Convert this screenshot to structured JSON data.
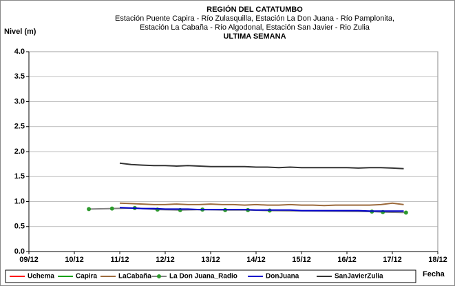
{
  "chart_data": {
    "type": "line",
    "title": "REGIÓN DEL CATATUMBO",
    "subtitle": [
      "Estación Puente Capira - Río Zulasquilla, Estación La Don Juana - Río Pamplonita,",
      "Estación La Cabaña - Río Algodonal, Estación San Javier - Rio Zulia",
      "ULTIMA SEMANA"
    ],
    "y_label": "Nivel (m)",
    "x_label": "Fecha",
    "xlim": [
      9,
      18
    ],
    "xticks": [
      {
        "value": 9,
        "label": "09/12"
      },
      {
        "value": 10,
        "label": "10/12"
      },
      {
        "value": 11,
        "label": "11/12"
      },
      {
        "value": 12,
        "label": "12/12"
      },
      {
        "value": 13,
        "label": "13/12"
      },
      {
        "value": 14,
        "label": "14/12"
      },
      {
        "value": 15,
        "label": "15/12"
      },
      {
        "value": 16,
        "label": "16/12"
      },
      {
        "value": 17,
        "label": "17/12"
      },
      {
        "value": 18,
        "label": "18/12"
      }
    ],
    "ylim": [
      0,
      4
    ],
    "yticks": [
      {
        "value": 0,
        "label": "0.0"
      },
      0.5,
      {
        "value": 1,
        "label": "1.0"
      },
      1.5,
      {
        "value": 2,
        "label": "2.0"
      },
      2.5,
      {
        "value": 3,
        "label": "3.0"
      },
      3.5,
      {
        "value": 4,
        "label": "4.0"
      }
    ],
    "grid": true,
    "legend": "bottom",
    "series": [
      {
        "name": "Uchema",
        "color": "#ff0000",
        "x": [],
        "values": []
      },
      {
        "name": "Capira",
        "color": "#00a000",
        "x": [],
        "values": []
      },
      {
        "name": "LaCabaña",
        "color": "#9c6a3c",
        "x": [
          11,
          11.25,
          11.5,
          11.75,
          12,
          12.25,
          12.5,
          12.75,
          13,
          13.25,
          13.5,
          13.75,
          14,
          14.25,
          14.5,
          14.75,
          15,
          15.25,
          15.5,
          15.75,
          16,
          16.25,
          16.5,
          16.75,
          17,
          17.25
        ],
        "values": [
          0.97,
          0.96,
          0.95,
          0.94,
          0.94,
          0.95,
          0.94,
          0.94,
          0.95,
          0.94,
          0.94,
          0.93,
          0.94,
          0.93,
          0.93,
          0.94,
          0.93,
          0.93,
          0.92,
          0.93,
          0.93,
          0.93,
          0.93,
          0.94,
          0.97,
          0.94
        ]
      },
      {
        "name": "La Don Juana_Radio",
        "color": "#808080",
        "marker_color": "#2e9a2e",
        "x": [
          10.32,
          10.83,
          11.33,
          11.83,
          12.33,
          12.82,
          13.32,
          13.82,
          14.3,
          16.55,
          16.79,
          17.3
        ],
        "values": [
          0.85,
          0.86,
          0.87,
          0.84,
          0.83,
          0.84,
          0.83,
          0.83,
          0.82,
          0.8,
          0.79,
          0.78
        ]
      },
      {
        "name": "DonJuana",
        "color": "#0000cc",
        "x": [
          11,
          11.25,
          11.5,
          11.75,
          12,
          12.25,
          12.5,
          12.75,
          13,
          13.25,
          13.5,
          13.75,
          14,
          14.25,
          14.5,
          14.75,
          15,
          15.25,
          15.5,
          15.75,
          16,
          16.25,
          16.5,
          16.75,
          17,
          17.25
        ],
        "values": [
          0.88,
          0.87,
          0.86,
          0.86,
          0.85,
          0.85,
          0.85,
          0.84,
          0.84,
          0.84,
          0.84,
          0.84,
          0.83,
          0.83,
          0.83,
          0.83,
          0.82,
          0.82,
          0.82,
          0.82,
          0.82,
          0.82,
          0.81,
          0.81,
          0.81,
          0.81
        ]
      },
      {
        "name": "SanJavierZulia",
        "color": "#333333",
        "x": [
          11,
          11.25,
          11.5,
          11.75,
          12,
          12.25,
          12.5,
          12.75,
          13,
          13.25,
          13.5,
          13.75,
          14,
          14.25,
          14.5,
          14.75,
          15,
          15.25,
          15.5,
          15.75,
          16,
          16.25,
          16.5,
          16.75,
          17,
          17.25
        ],
        "values": [
          1.77,
          1.74,
          1.73,
          1.72,
          1.72,
          1.71,
          1.72,
          1.71,
          1.7,
          1.7,
          1.7,
          1.7,
          1.69,
          1.69,
          1.68,
          1.69,
          1.68,
          1.68,
          1.68,
          1.68,
          1.68,
          1.67,
          1.68,
          1.68,
          1.67,
          1.66
        ]
      }
    ]
  }
}
